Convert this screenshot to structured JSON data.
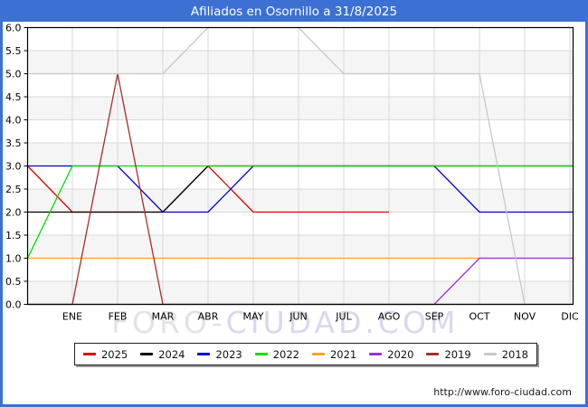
{
  "title": "Afiliados en Osornillo a 31/8/2025",
  "watermark": {
    "part1": "FORO-",
    "part2": "CIUDAD.COM"
  },
  "footer_url": "http://www.foro-ciudad.com",
  "colors": {
    "frame_blue": "#3c70d2",
    "plot_band_gray": "#f5f5f5",
    "gridline": "#d9d9d9",
    "axis_border": "#000000"
  },
  "chart_data": {
    "type": "line",
    "title": "Afiliados en Osornillo a 31/8/2025",
    "x_categories": [
      "ENE",
      "FEB",
      "MAR",
      "ABR",
      "MAY",
      "JUN",
      "JUL",
      "AGO",
      "SEP",
      "OCT",
      "NOV",
      "DIC"
    ],
    "y_tick_labels": [
      "6.0",
      "5.5",
      "5.0",
      "4.5",
      "4.0",
      "3.5",
      "3.0",
      "2.5",
      "2.0",
      "1.5",
      "1.0",
      "0.5",
      "0.0"
    ],
    "ylim": [
      0,
      6
    ],
    "grid": true,
    "legend_position": "bottom",
    "note_edge_values": "each series starts at the plot left border with 'edge' value before the ENE gridline",
    "series": [
      {
        "name": "2025",
        "color": "#dd0000",
        "edge": 3,
        "values": [
          2,
          2,
          2,
          3,
          2,
          2,
          2,
          2,
          null,
          null,
          null,
          null
        ]
      },
      {
        "name": "2024",
        "color": "#000000",
        "edge": 2,
        "values": [
          2,
          2,
          2,
          3,
          3,
          3,
          3,
          3,
          3,
          3,
          3,
          3
        ]
      },
      {
        "name": "2023",
        "color": "#0000cc",
        "edge": 3,
        "values": [
          3,
          3,
          2,
          2,
          3,
          3,
          3,
          3,
          3,
          2,
          2,
          2
        ]
      },
      {
        "name": "2022",
        "color": "#00dd00",
        "edge": 1,
        "values": [
          3,
          3,
          3,
          3,
          3,
          3,
          3,
          3,
          3,
          3,
          3,
          3
        ]
      },
      {
        "name": "2021",
        "color": "#ffa020",
        "edge": 1,
        "values": [
          1,
          1,
          1,
          1,
          1,
          1,
          1,
          1,
          1,
          1,
          1,
          1
        ]
      },
      {
        "name": "2020",
        "color": "#9933cc",
        "edge": 0,
        "values": [
          0,
          0,
          0,
          0,
          0,
          0,
          0,
          0,
          0,
          1,
          1,
          1
        ]
      },
      {
        "name": "2019",
        "color": "#a03030",
        "edge": 0,
        "values": [
          0,
          5,
          0,
          0,
          0,
          0,
          0,
          0,
          0,
          0,
          0,
          0
        ]
      },
      {
        "name": "2018",
        "color": "#c8c8c8",
        "edge": 5,
        "values": [
          5,
          5,
          5,
          6,
          6,
          6,
          5,
          5,
          5,
          5,
          0,
          0
        ]
      }
    ]
  }
}
